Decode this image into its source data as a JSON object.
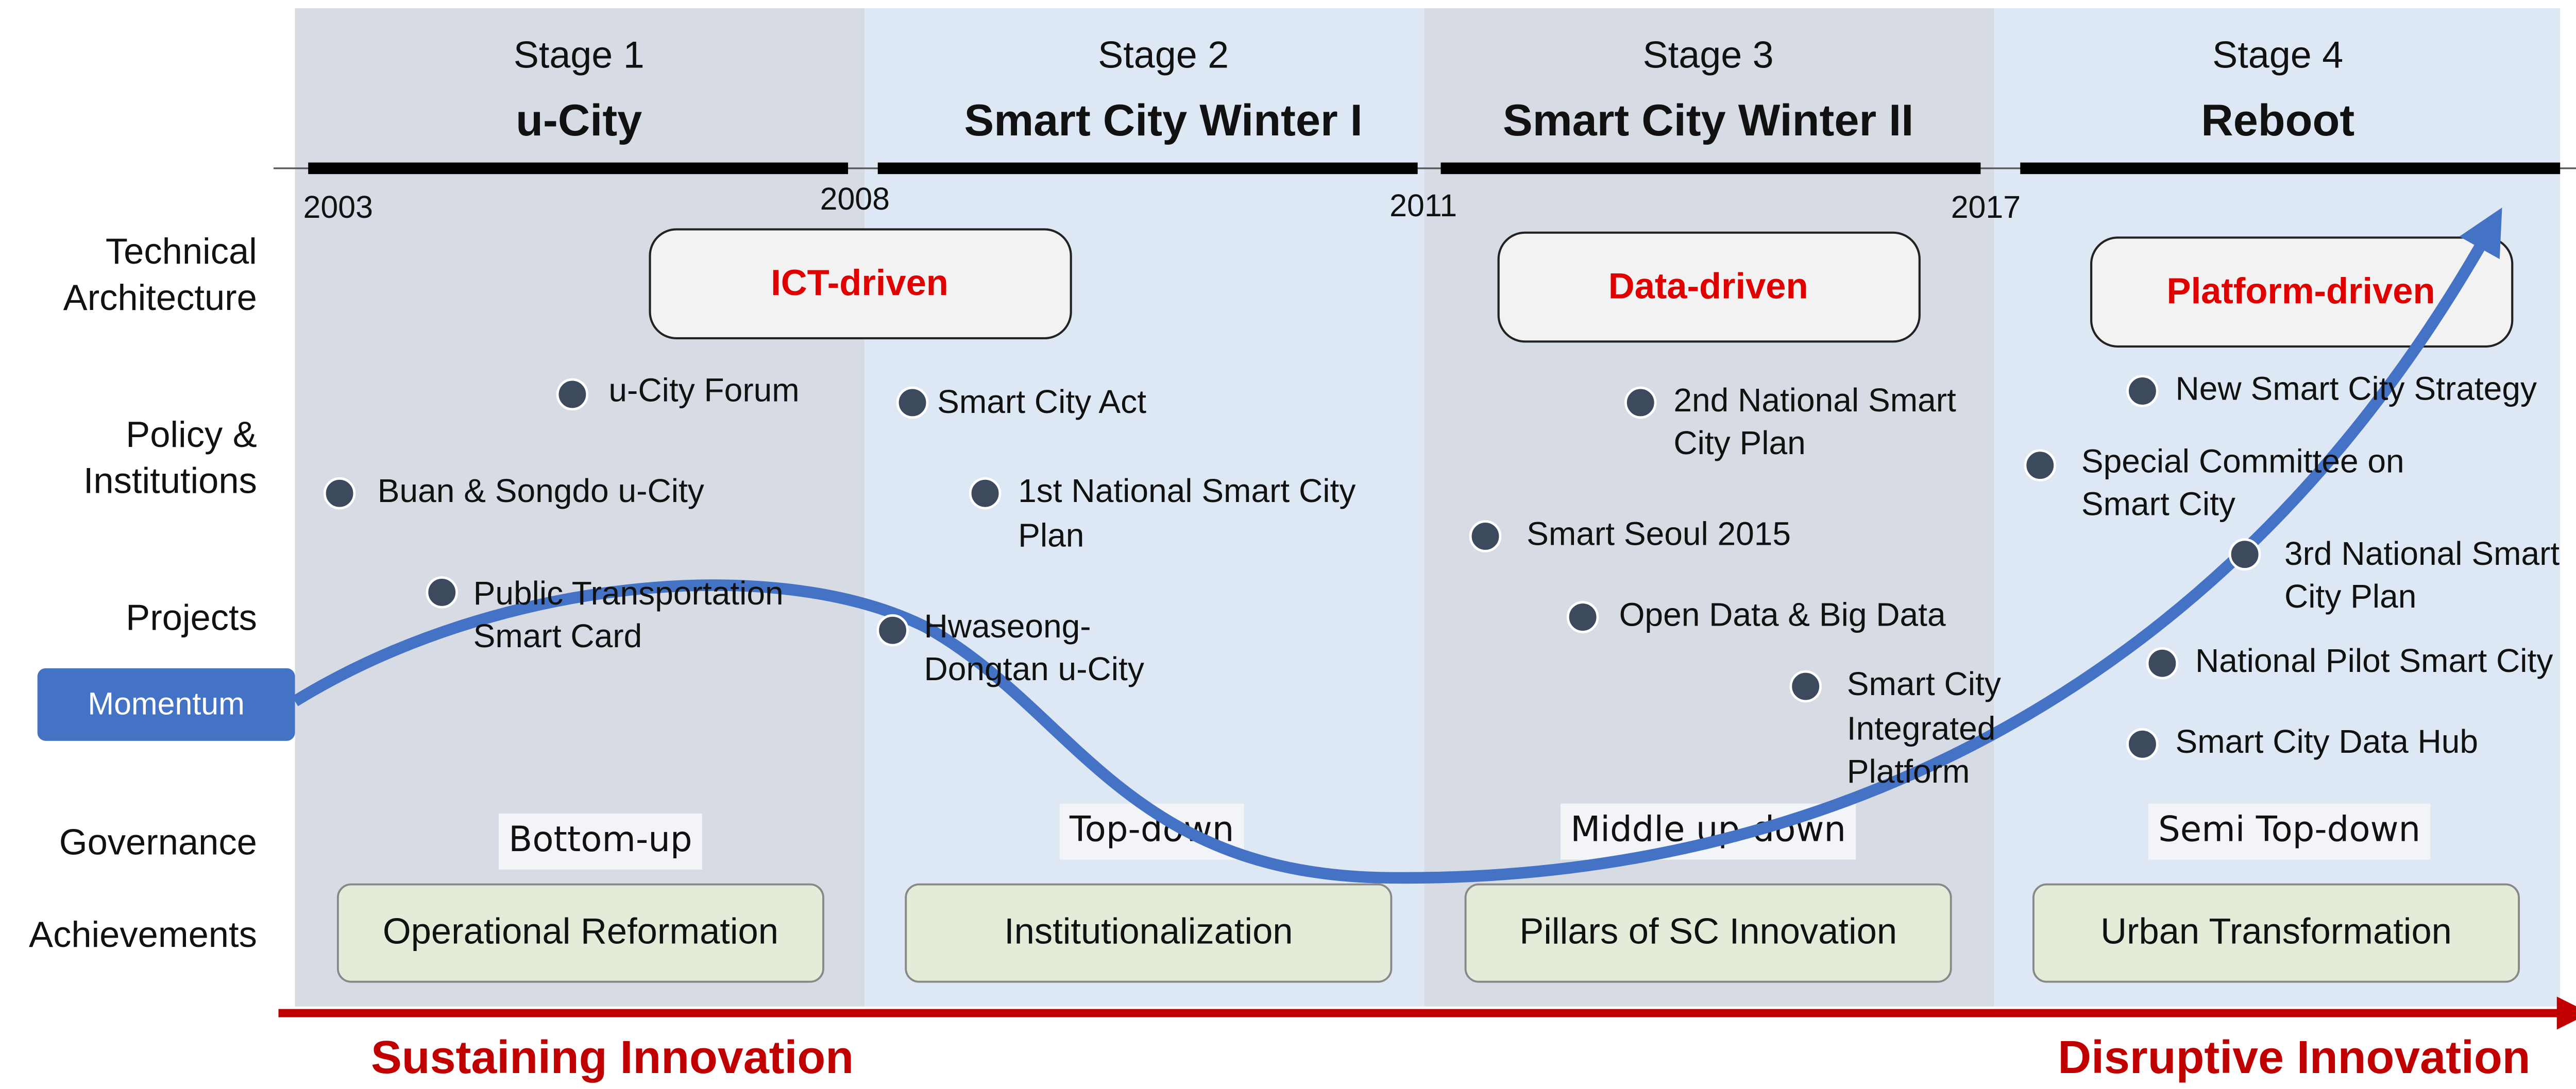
{
  "stages": [
    {
      "label": "Stage 1",
      "name": "u-City",
      "governance": "Bottom-up",
      "achievement": "Operational Reformation"
    },
    {
      "label": "Stage 2",
      "name": "Smart City Winter I",
      "governance": "Top-down",
      "achievement": "Institutionalization"
    },
    {
      "label": "Stage 3",
      "name": "Smart City Winter II",
      "governance": "Middle up-down",
      "achievement": "Pillars of SC Innovation"
    },
    {
      "label": "Stage 4",
      "name": "Reboot",
      "governance": "Semi Top-down",
      "achievement": "Urban Transformation"
    }
  ],
  "years": [
    "2003",
    "2008",
    "2011",
    "2017"
  ],
  "row_labels": [
    [
      "Technical",
      "Architecture"
    ],
    [
      "Policy &",
      "Institutions"
    ],
    [
      "Projects"
    ],
    [
      "Governance"
    ],
    [
      "Achievements"
    ]
  ],
  "drivers": [
    "ICT-driven",
    "Data-driven",
    "Platform-driven"
  ],
  "momentum": "Momentum",
  "events": [
    [
      "u-City Forum"
    ],
    [
      "Buan & Songdo u-City"
    ],
    [
      "Public Transportation",
      "Smart Card"
    ],
    [
      "Smart City Act"
    ],
    [
      "1st National Smart City",
      "Plan"
    ],
    [
      "Hwaseong-",
      "Dongtan u-City"
    ],
    [
      "2nd National Smart",
      "City Plan"
    ],
    [
      "Smart Seoul 2015"
    ],
    [
      "Open Data & Big Data"
    ],
    [
      "Smart City",
      "Integrated",
      "Platform"
    ],
    [
      "New Smart City Strategy"
    ],
    [
      "Special Committee on",
      "Smart City"
    ],
    [
      "3rd National Smart",
      "City Plan"
    ],
    [
      "National Pilot Smart City"
    ],
    [
      "Smart City Data Hub"
    ]
  ],
  "innovation": {
    "left": "Sustaining Innovation",
    "right": "Disruptive Innovation"
  }
}
